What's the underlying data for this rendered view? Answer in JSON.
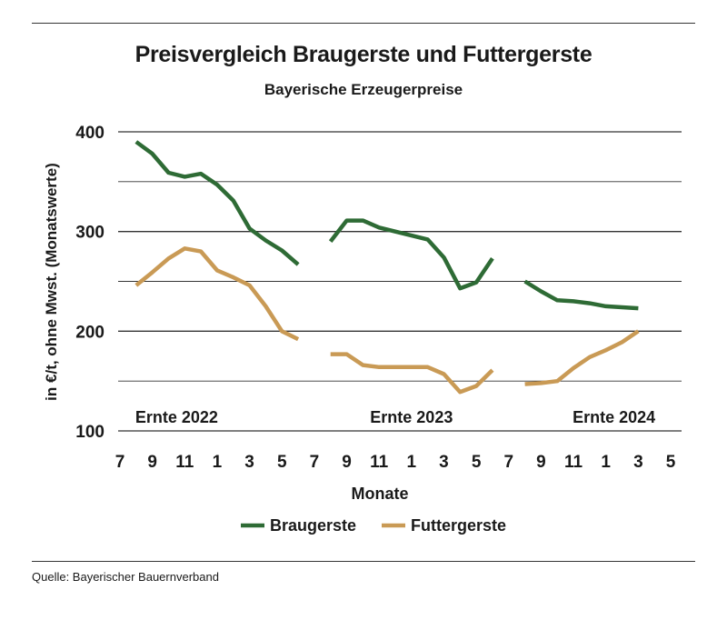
{
  "title": "Preisvergleich Braugerste und Futtergerste",
  "subtitle": "Bayerische Erzeugerpreise",
  "source": "Quelle: Bayerischer Bauernverband",
  "colors": {
    "braugerste": "#2e6b35",
    "futtergerste": "#c99a55",
    "grid": "#333333"
  },
  "chart_data": {
    "type": "line",
    "title": "Preisvergleich Braugerste und Futtergerste",
    "subtitle": "Bayerische Erzeugerpreise",
    "xlabel": "Monate",
    "ylabel": "in €/t, ohne Mwst. (Monatswerte)",
    "ylim": [
      100,
      400
    ],
    "yticks": [
      100,
      200,
      300,
      400
    ],
    "grid": true,
    "legend_position": "bottom",
    "x_range": [
      0,
      34
    ],
    "x_ticks": [
      {
        "x": 0,
        "label": "7"
      },
      {
        "x": 2,
        "label": "9"
      },
      {
        "x": 4,
        "label": "11"
      },
      {
        "x": 6,
        "label": "1"
      },
      {
        "x": 8,
        "label": "3"
      },
      {
        "x": 10,
        "label": "5"
      },
      {
        "x": 12,
        "label": "7"
      },
      {
        "x": 14,
        "label": "9"
      },
      {
        "x": 16,
        "label": "11"
      },
      {
        "x": 18,
        "label": "1"
      },
      {
        "x": 20,
        "label": "3"
      },
      {
        "x": 22,
        "label": "5"
      },
      {
        "x": 24,
        "label": "7"
      },
      {
        "x": 26,
        "label": "9"
      },
      {
        "x": 28,
        "label": "11"
      },
      {
        "x": 30,
        "label": "1"
      },
      {
        "x": 32,
        "label": "3"
      },
      {
        "x": 34,
        "label": "5"
      }
    ],
    "annotations": [
      {
        "text": "Ernte 2022",
        "x": 3.5
      },
      {
        "text": "Ernte 2023",
        "x": 18
      },
      {
        "text": "Ernte 2024",
        "x": 30.5
      }
    ],
    "series": [
      {
        "name": "Braugerste",
        "color": "#2e6b35",
        "segments": [
          [
            [
              1,
              390
            ],
            [
              2,
              378
            ],
            [
              3,
              359
            ],
            [
              4,
              355
            ],
            [
              5,
              358
            ],
            [
              6,
              347
            ],
            [
              7,
              331
            ],
            [
              8,
              303
            ],
            [
              9,
              291
            ],
            [
              10,
              281
            ],
            [
              11,
              267
            ]
          ],
          [
            [
              13,
              290
            ],
            [
              14,
              311
            ],
            [
              15,
              311
            ],
            [
              16,
              304
            ],
            [
              17,
              300
            ],
            [
              18,
              296
            ],
            [
              19,
              292
            ],
            [
              20,
              274
            ],
            [
              21,
              243
            ],
            [
              22,
              249
            ],
            [
              23,
              273
            ]
          ],
          [
            [
              25,
              250
            ],
            [
              26,
              240
            ],
            [
              27,
              231
            ],
            [
              28,
              230
            ],
            [
              29,
              228
            ],
            [
              30,
              225
            ],
            [
              31,
              224
            ],
            [
              32,
              223
            ]
          ]
        ]
      },
      {
        "name": "Futtergerste",
        "color": "#c99a55",
        "segments": [
          [
            [
              1,
              246
            ],
            [
              2,
              259
            ],
            [
              3,
              273
            ],
            [
              4,
              283
            ],
            [
              5,
              280
            ],
            [
              6,
              261
            ],
            [
              7,
              254
            ],
            [
              8,
              246
            ],
            [
              9,
              225
            ],
            [
              10,
              200
            ],
            [
              11,
              192
            ]
          ],
          [
            [
              13,
              177
            ],
            [
              14,
              177
            ],
            [
              15,
              166
            ],
            [
              16,
              164
            ],
            [
              17,
              164
            ],
            [
              18,
              164
            ],
            [
              19,
              164
            ],
            [
              20,
              157
            ],
            [
              21,
              139
            ],
            [
              22,
              145
            ],
            [
              23,
              161
            ]
          ],
          [
            [
              25,
              147
            ],
            [
              26,
              148
            ],
            [
              27,
              150
            ],
            [
              28,
              163
            ],
            [
              29,
              174
            ],
            [
              30,
              181
            ],
            [
              31,
              189
            ],
            [
              32,
              200
            ]
          ]
        ]
      }
    ]
  }
}
